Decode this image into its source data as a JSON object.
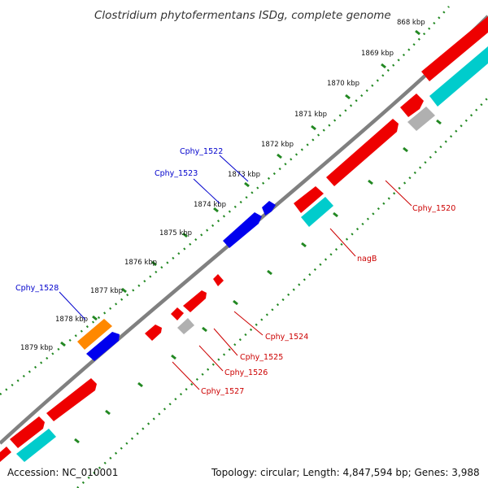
{
  "title": "Clostridium phytofermentans ISDg, complete genome",
  "ruler_ticks": [
    "868 kbp",
    "1869 kbp",
    "1870 kbp",
    "1871 kbp",
    "1872 kbp",
    "1873 kbp",
    "1874 kbp",
    "1875 kbp",
    "1876 kbp",
    "1877 kbp",
    "1878 kbp",
    "1879 kbp"
  ],
  "gene_labels": {
    "cphy_1522": "Cphy_1522",
    "cphy_1523": "Cphy_1523",
    "cphy_1528": "Cphy_1528",
    "cphy_1520": "Cphy_1520",
    "nagb": "nagB",
    "cphy_1524": "Cphy_1524",
    "cphy_1525": "Cphy_1525",
    "cphy_1526": "Cphy_1526",
    "cphy_1527": "Cphy_1527"
  },
  "footer": {
    "accession": "Accession: NC_010001",
    "summary": "Topology: circular; Length: 4,847,594 bp; Genes: 3,988"
  },
  "colors": {
    "background": "#ffffff",
    "backbone": "#808080",
    "cds_forward": "#0000ee",
    "cds_reverse": "#ee0000",
    "rna_orange": "#ff8800",
    "cyan_feature": "#00cccc",
    "gray_feature": "#b0b0b0",
    "tick_dots": "#228822",
    "label_blue": "#0000cc",
    "label_red": "#cc0000"
  }
}
